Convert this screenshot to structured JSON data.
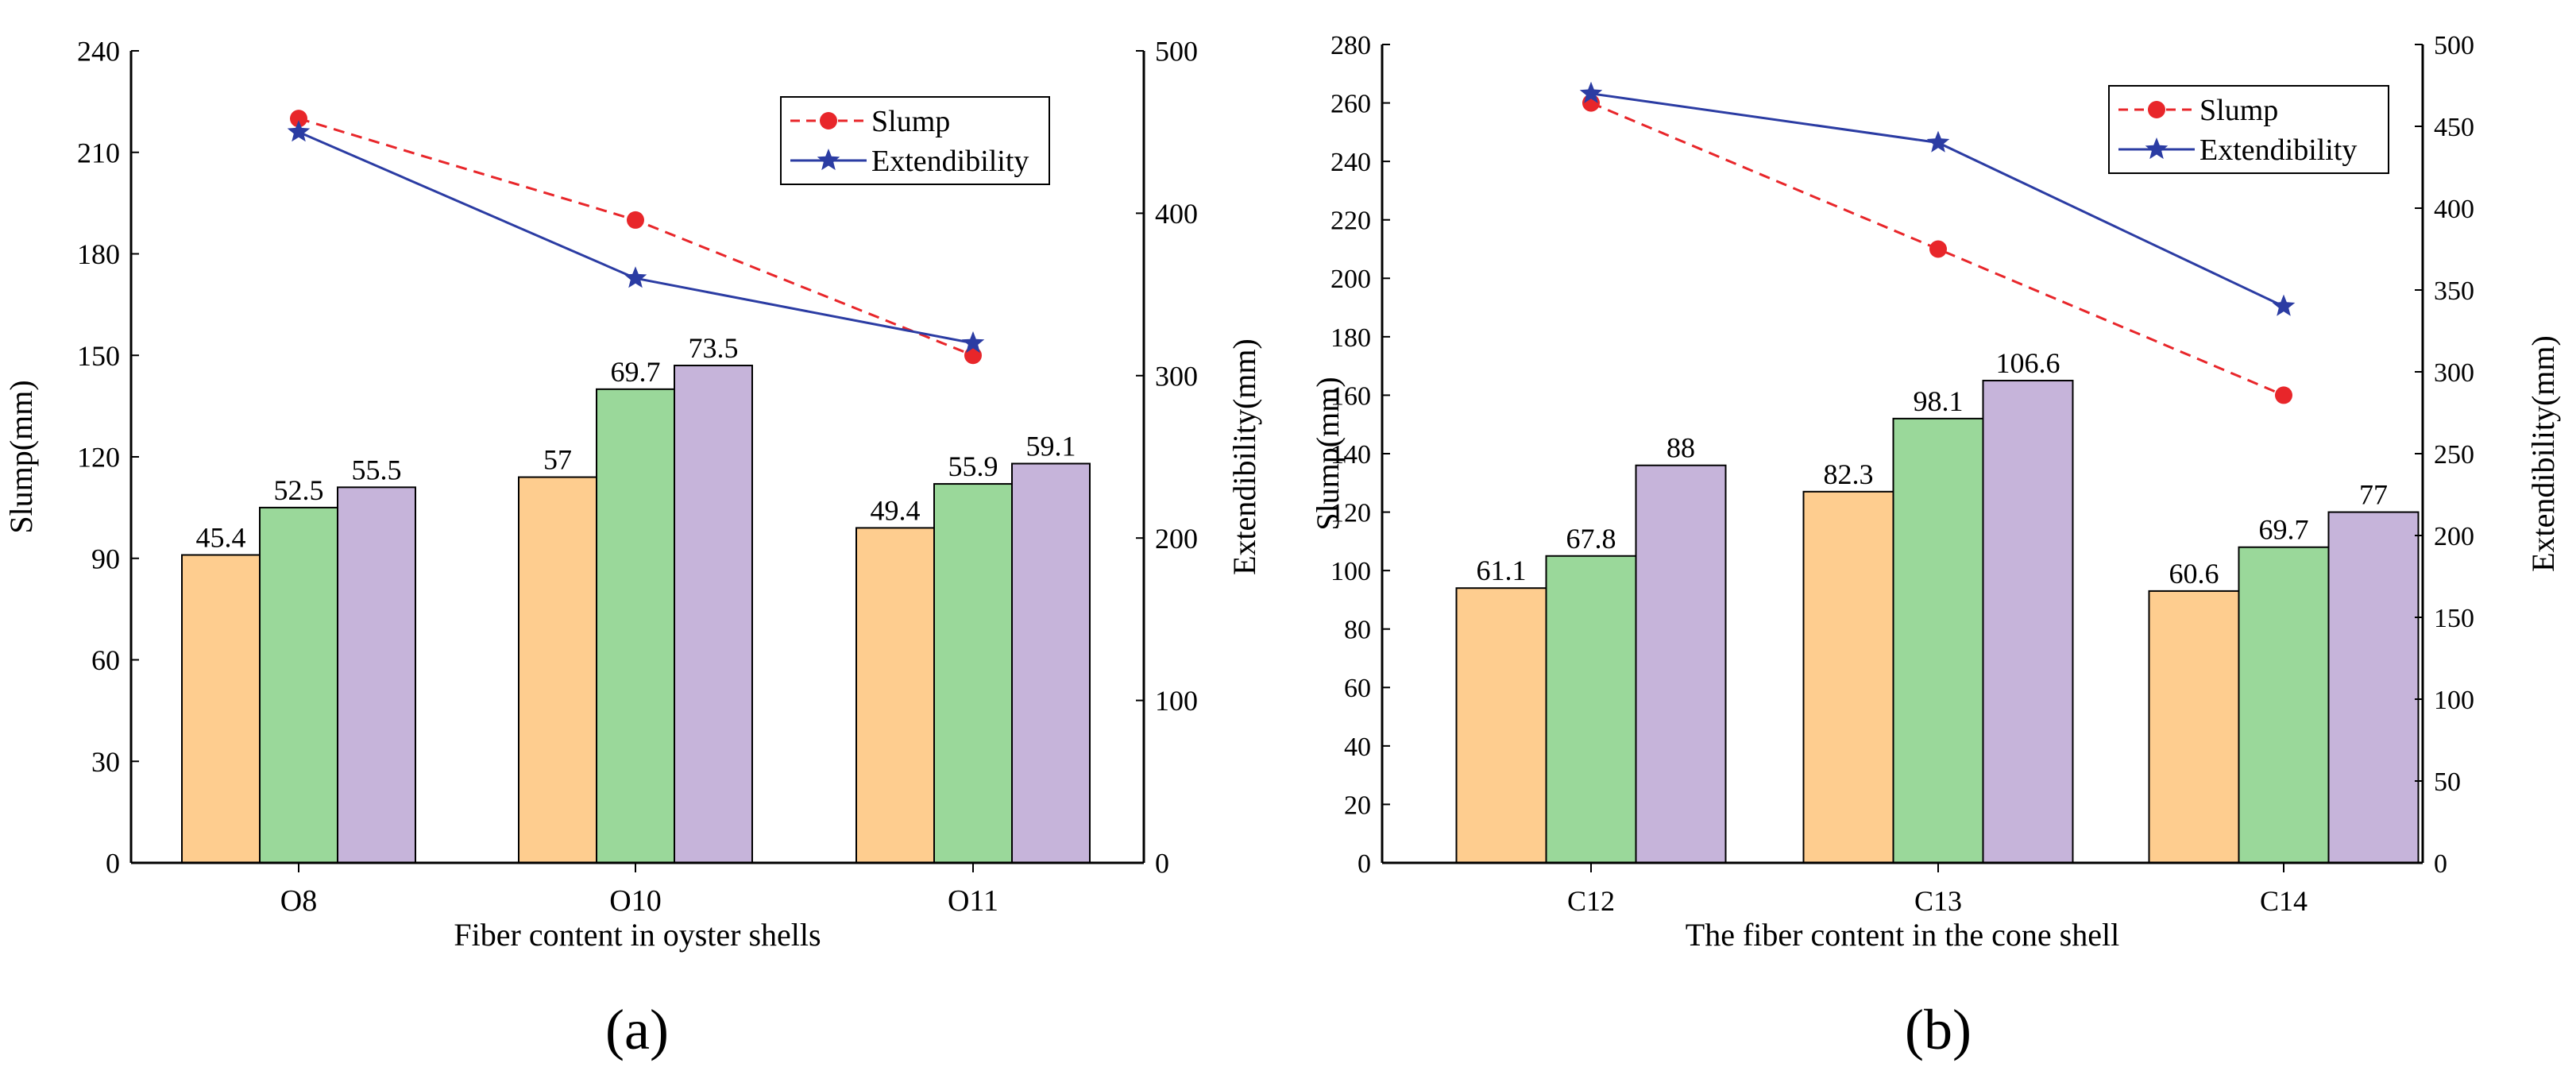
{
  "chart_data": [
    {
      "type": "bar+line",
      "panel_label": "(a)",
      "xlabel": "Fiber content in oyster shells",
      "ylabel_left": "Slump(mm)",
      "ylabel_right": "Extendibility(mm)",
      "categories": [
        "O8",
        "O10",
        "O11"
      ],
      "bar_series": [
        {
          "name": "bar-1",
          "color": "#FECD8F",
          "values": [
            45.4,
            57,
            49.4
          ]
        },
        {
          "name": "bar-2",
          "color": "#9AD89A",
          "values": [
            52.5,
            69.7,
            55.9
          ]
        },
        {
          "name": "bar-3",
          "color": "#C6B4DA",
          "values": [
            55.5,
            73.5,
            59.1
          ]
        }
      ],
      "bar_bar_left_axis_values": [
        [
          91,
          105,
          111
        ],
        [
          114,
          140,
          147
        ],
        [
          99,
          112,
          118
        ]
      ],
      "line_series": [
        {
          "name": "Slump",
          "axis": "left",
          "color": "#E8262A",
          "style": "dashed",
          "marker": "circle",
          "values": [
            220,
            190,
            150
          ]
        },
        {
          "name": "Extendibility",
          "axis": "right",
          "color": "#2B3CA3",
          "style": "solid",
          "marker": "star",
          "values": [
            450,
            360,
            320
          ]
        }
      ],
      "ylim_left": [
        0,
        240
      ],
      "yticks_left": [
        "0",
        "30",
        "60",
        "90",
        "120",
        "150",
        "180",
        "210",
        "240"
      ],
      "ylim_right": [
        0,
        500
      ],
      "yticks_right": [
        "0",
        "100",
        "200",
        "300",
        "400",
        "500"
      ],
      "legend": [
        {
          "label": "Slump"
        },
        {
          "label": "Extendibility"
        }
      ],
      "legend_position": "top-right"
    },
    {
      "type": "bar+line",
      "panel_label": "(b)",
      "xlabel": "The fiber content in the cone shell",
      "ylabel_left": "Slump(mm)",
      "ylabel_right": "Extendibility(mm)",
      "categories": [
        "C12",
        "C13",
        "C14"
      ],
      "bar_series": [
        {
          "name": "bar-1",
          "color": "#FECD8F",
          "values": [
            61.1,
            82.3,
            60.6
          ]
        },
        {
          "name": "bar-2",
          "color": "#9AD89A",
          "values": [
            67.8,
            98.1,
            69.7
          ]
        },
        {
          "name": "bar-3",
          "color": "#C6B4DA",
          "values": [
            88,
            106.6,
            77
          ]
        }
      ],
      "bar_bar_left_axis_values": [
        [
          94,
          105,
          136
        ],
        [
          127,
          152,
          165
        ],
        [
          93,
          108,
          120
        ]
      ],
      "line_series": [
        {
          "name": "Slump",
          "axis": "left",
          "color": "#E8262A",
          "style": "dashed",
          "marker": "circle",
          "values": [
            260,
            210,
            160
          ]
        },
        {
          "name": "Extendibility",
          "axis": "right",
          "color": "#2B3CA3",
          "style": "solid",
          "marker": "star",
          "values": [
            470,
            440,
            340
          ]
        }
      ],
      "ylim_left": [
        0,
        280
      ],
      "yticks_left": [
        "0",
        "20",
        "40",
        "60",
        "80",
        "100",
        "120",
        "140",
        "160",
        "180",
        "200",
        "220",
        "240",
        "260",
        "280"
      ],
      "ylim_right": [
        0,
        500
      ],
      "yticks_right": [
        "0",
        "50",
        "100",
        "150",
        "200",
        "250",
        "300",
        "350",
        "400",
        "450",
        "500"
      ],
      "legend": [
        {
          "label": "Slump"
        },
        {
          "label": "Extendibility"
        }
      ],
      "legend_position": "top-right"
    }
  ]
}
